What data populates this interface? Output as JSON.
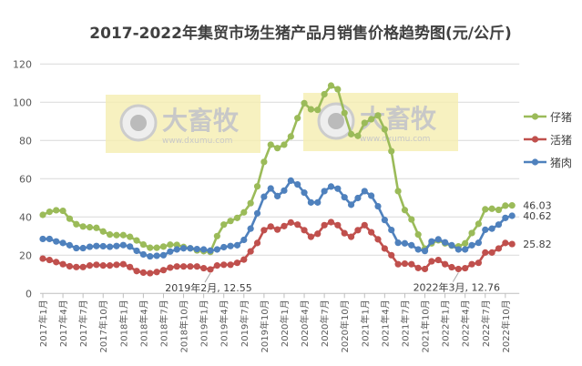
{
  "chart_data": {
    "type": "line",
    "title": "2017-2022年集贸市场生猪产品月销售价格趋势图(元/公斤)",
    "xlabel": "",
    "ylabel": "",
    "ylim": [
      0,
      120
    ],
    "yticks": [
      0,
      20,
      40,
      60,
      80,
      100,
      120
    ],
    "grid": true,
    "legend_position": "right",
    "x_start": "2017年1月",
    "x_tick_labels": [
      "2017年1月",
      "2017年4月",
      "2017年7月",
      "2017年10月",
      "2018年1月",
      "2018年4月",
      "2018年7月",
      "2018年10月",
      "2019年1月",
      "2019年4月",
      "2019年7月",
      "2019年10月",
      "2020年1月",
      "2020年4月",
      "2020年7月",
      "2020年10月",
      "2021年1月",
      "2021年4月",
      "2021年7月",
      "2021年10月",
      "2022年1月",
      "2022年4月",
      "2022年7月",
      "2022年10月"
    ],
    "series": [
      {
        "name": "仔猪",
        "color": "#9bbb59",
        "end_label": "46.03",
        "values": [
          41.1,
          42.7,
          43.5,
          43.2,
          39.1,
          36.2,
          35.0,
          34.6,
          34.3,
          32.4,
          30.8,
          30.5,
          30.5,
          29.6,
          27.7,
          25.6,
          23.9,
          23.9,
          24.5,
          25.5,
          25.4,
          24.3,
          23.6,
          22.5,
          22.1,
          21.7,
          30.0,
          36.0,
          37.9,
          39.5,
          42.4,
          47.2,
          56.0,
          68.8,
          77.8,
          76.0,
          77.8,
          82.1,
          91.7,
          99.5,
          96.3,
          96.0,
          104.2,
          108.7,
          106.8,
          94.4,
          83.3,
          82.4,
          89.2,
          91.1,
          93.1,
          85.8,
          74.4,
          53.5,
          43.6,
          38.7,
          30.8,
          23.4,
          26.2,
          27.8,
          26.2,
          25.0,
          24.6,
          26.2,
          31.6,
          36.4,
          44.0,
          44.3,
          43.7,
          45.9,
          46.03
        ]
      },
      {
        "name": "活猪",
        "color": "#c0504d",
        "end_label": "25.82",
        "values": [
          18.2,
          17.5,
          16.4,
          15.3,
          14.2,
          13.8,
          13.8,
          14.6,
          15.0,
          14.6,
          14.6,
          15.0,
          15.3,
          13.8,
          11.7,
          10.9,
          10.6,
          11.2,
          12.2,
          13.5,
          14.1,
          14.1,
          14.1,
          14.1,
          13.2,
          12.55,
          14.6,
          15.0,
          15.0,
          16.0,
          17.7,
          22.0,
          26.4,
          33.1,
          35.0,
          33.4,
          35.2,
          37.1,
          36.0,
          33.1,
          29.6,
          31.2,
          35.7,
          37.3,
          35.7,
          31.5,
          29.6,
          33.1,
          35.7,
          32.0,
          28.3,
          23.5,
          20.0,
          15.3,
          15.6,
          15.3,
          13.3,
          12.8,
          16.8,
          17.5,
          15.3,
          13.7,
          12.76,
          13.2,
          15.3,
          16.0,
          21.4,
          21.4,
          23.5,
          26.4,
          25.82
        ]
      },
      {
        "name": "猪肉",
        "color": "#4f81bd",
        "end_label": "40.62",
        "values": [
          28.5,
          28.5,
          27.2,
          26.4,
          25.2,
          23.7,
          23.7,
          24.4,
          24.8,
          24.7,
          24.4,
          24.8,
          25.3,
          24.5,
          22.3,
          20.4,
          19.4,
          19.7,
          20.0,
          21.9,
          23.0,
          23.6,
          23.6,
          23.2,
          23.0,
          22.4,
          23.0,
          24.2,
          24.8,
          25.2,
          28.0,
          33.9,
          41.9,
          50.6,
          54.9,
          50.9,
          53.8,
          59.0,
          57.0,
          52.7,
          47.6,
          47.6,
          53.5,
          55.9,
          54.8,
          50.3,
          46.4,
          49.9,
          53.5,
          51.1,
          45.6,
          38.4,
          33.2,
          26.5,
          26.2,
          25.2,
          23.0,
          22.2,
          27.2,
          28.3,
          26.7,
          25.2,
          23.0,
          23.0,
          25.2,
          26.5,
          33.3,
          33.9,
          36.0,
          39.5,
          40.62
        ]
      }
    ],
    "annotations": [
      {
        "text": "2019年2月, 12.55",
        "series": "活猪",
        "x": "2019年2月",
        "y": 12.55
      },
      {
        "text": "2022年3月, 12.76",
        "series": "活猪",
        "x": "2022年3月",
        "y": 12.76
      }
    ]
  },
  "watermark": {
    "brand": "大畜牧",
    "url": "www.dxumu.com"
  }
}
